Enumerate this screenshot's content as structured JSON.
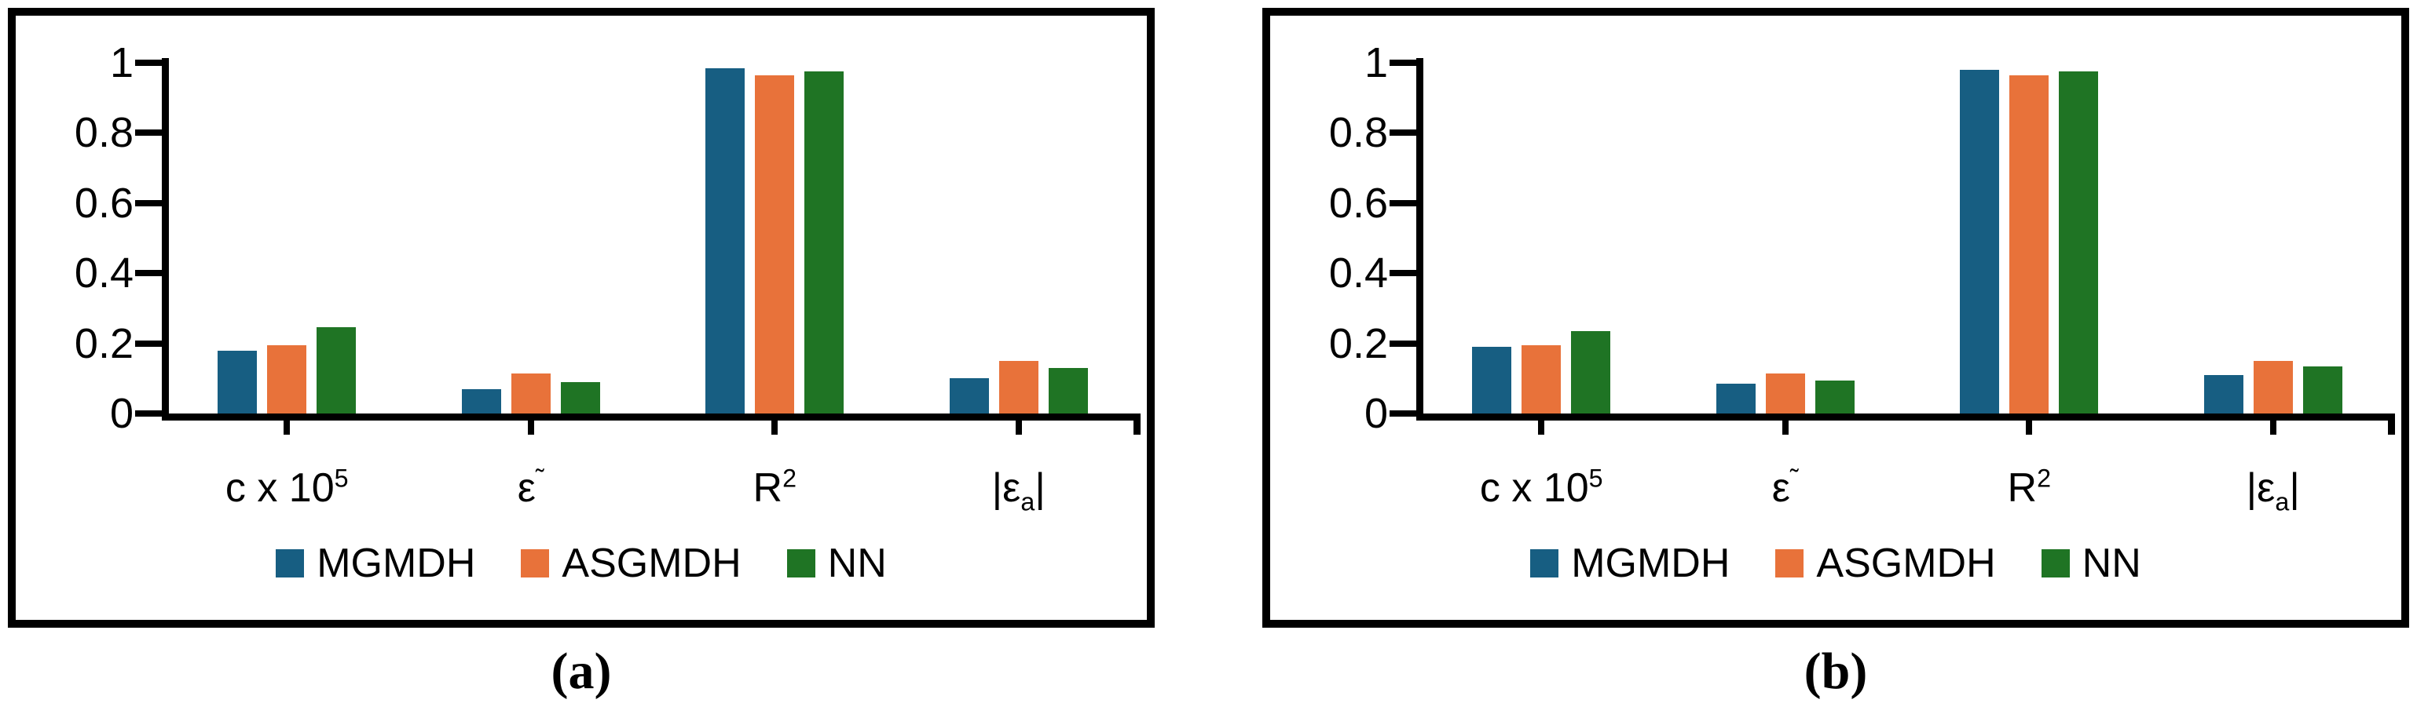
{
  "figure": {
    "panels": [
      {
        "caption": "(a)"
      },
      {
        "caption": "(b)"
      }
    ]
  },
  "chart_data": [
    {
      "type": "bar",
      "panel": "a",
      "title": "",
      "xlabel": "",
      "ylabel": "",
      "categories": [
        "c x 10^5",
        "ε̃",
        "R^2",
        "|ε_a|"
      ],
      "category_parts": [
        {
          "pre": "c x 10",
          "sup": "5"
        },
        {
          "pre": "ε",
          "sup": "˜"
        },
        {
          "pre": "R",
          "sup": "2"
        },
        {
          "pre": "|ε",
          "sub": "a",
          "post": "|"
        }
      ],
      "series": [
        {
          "name": "MGMDH",
          "color": "#175e82",
          "values": [
            0.18,
            0.07,
            0.985,
            0.1
          ]
        },
        {
          "name": "ASGMDH",
          "color": "#e8723a",
          "values": [
            0.195,
            0.115,
            0.965,
            0.15
          ]
        },
        {
          "name": "NN",
          "color": "#1f7424",
          "values": [
            0.245,
            0.09,
            0.975,
            0.13
          ]
        }
      ],
      "ylim": [
        0,
        1
      ],
      "yticks": [
        1,
        0.8,
        0.6,
        0.4,
        0.2,
        0
      ],
      "ytick_labels": [
        "1",
        "0.8",
        "0.6",
        "0.4",
        "0.2",
        "0"
      ],
      "grid": false,
      "legend_position": "bottom"
    },
    {
      "type": "bar",
      "panel": "b",
      "title": "",
      "xlabel": "",
      "ylabel": "",
      "categories": [
        "c x 10^5",
        "ε̃",
        "R^2",
        "|ε_a|"
      ],
      "category_parts": [
        {
          "pre": "c x 10",
          "sup": "5"
        },
        {
          "pre": "ε",
          "sup": "˜"
        },
        {
          "pre": "R",
          "sup": "2"
        },
        {
          "pre": "|ε",
          "sub": "a",
          "post": "|"
        }
      ],
      "series": [
        {
          "name": "MGMDH",
          "color": "#175e82",
          "values": [
            0.19,
            0.085,
            0.98,
            0.11
          ]
        },
        {
          "name": "ASGMDH",
          "color": "#e8723a",
          "values": [
            0.195,
            0.115,
            0.965,
            0.15
          ]
        },
        {
          "name": "NN",
          "color": "#1f7424",
          "values": [
            0.235,
            0.095,
            0.975,
            0.135
          ]
        }
      ],
      "ylim": [
        0,
        1
      ],
      "yticks": [
        1,
        0.8,
        0.6,
        0.4,
        0.2,
        0
      ],
      "ytick_labels": [
        "1",
        "0.8",
        "0.6",
        "0.4",
        "0.2",
        "0"
      ],
      "grid": false,
      "legend_position": "bottom"
    }
  ]
}
